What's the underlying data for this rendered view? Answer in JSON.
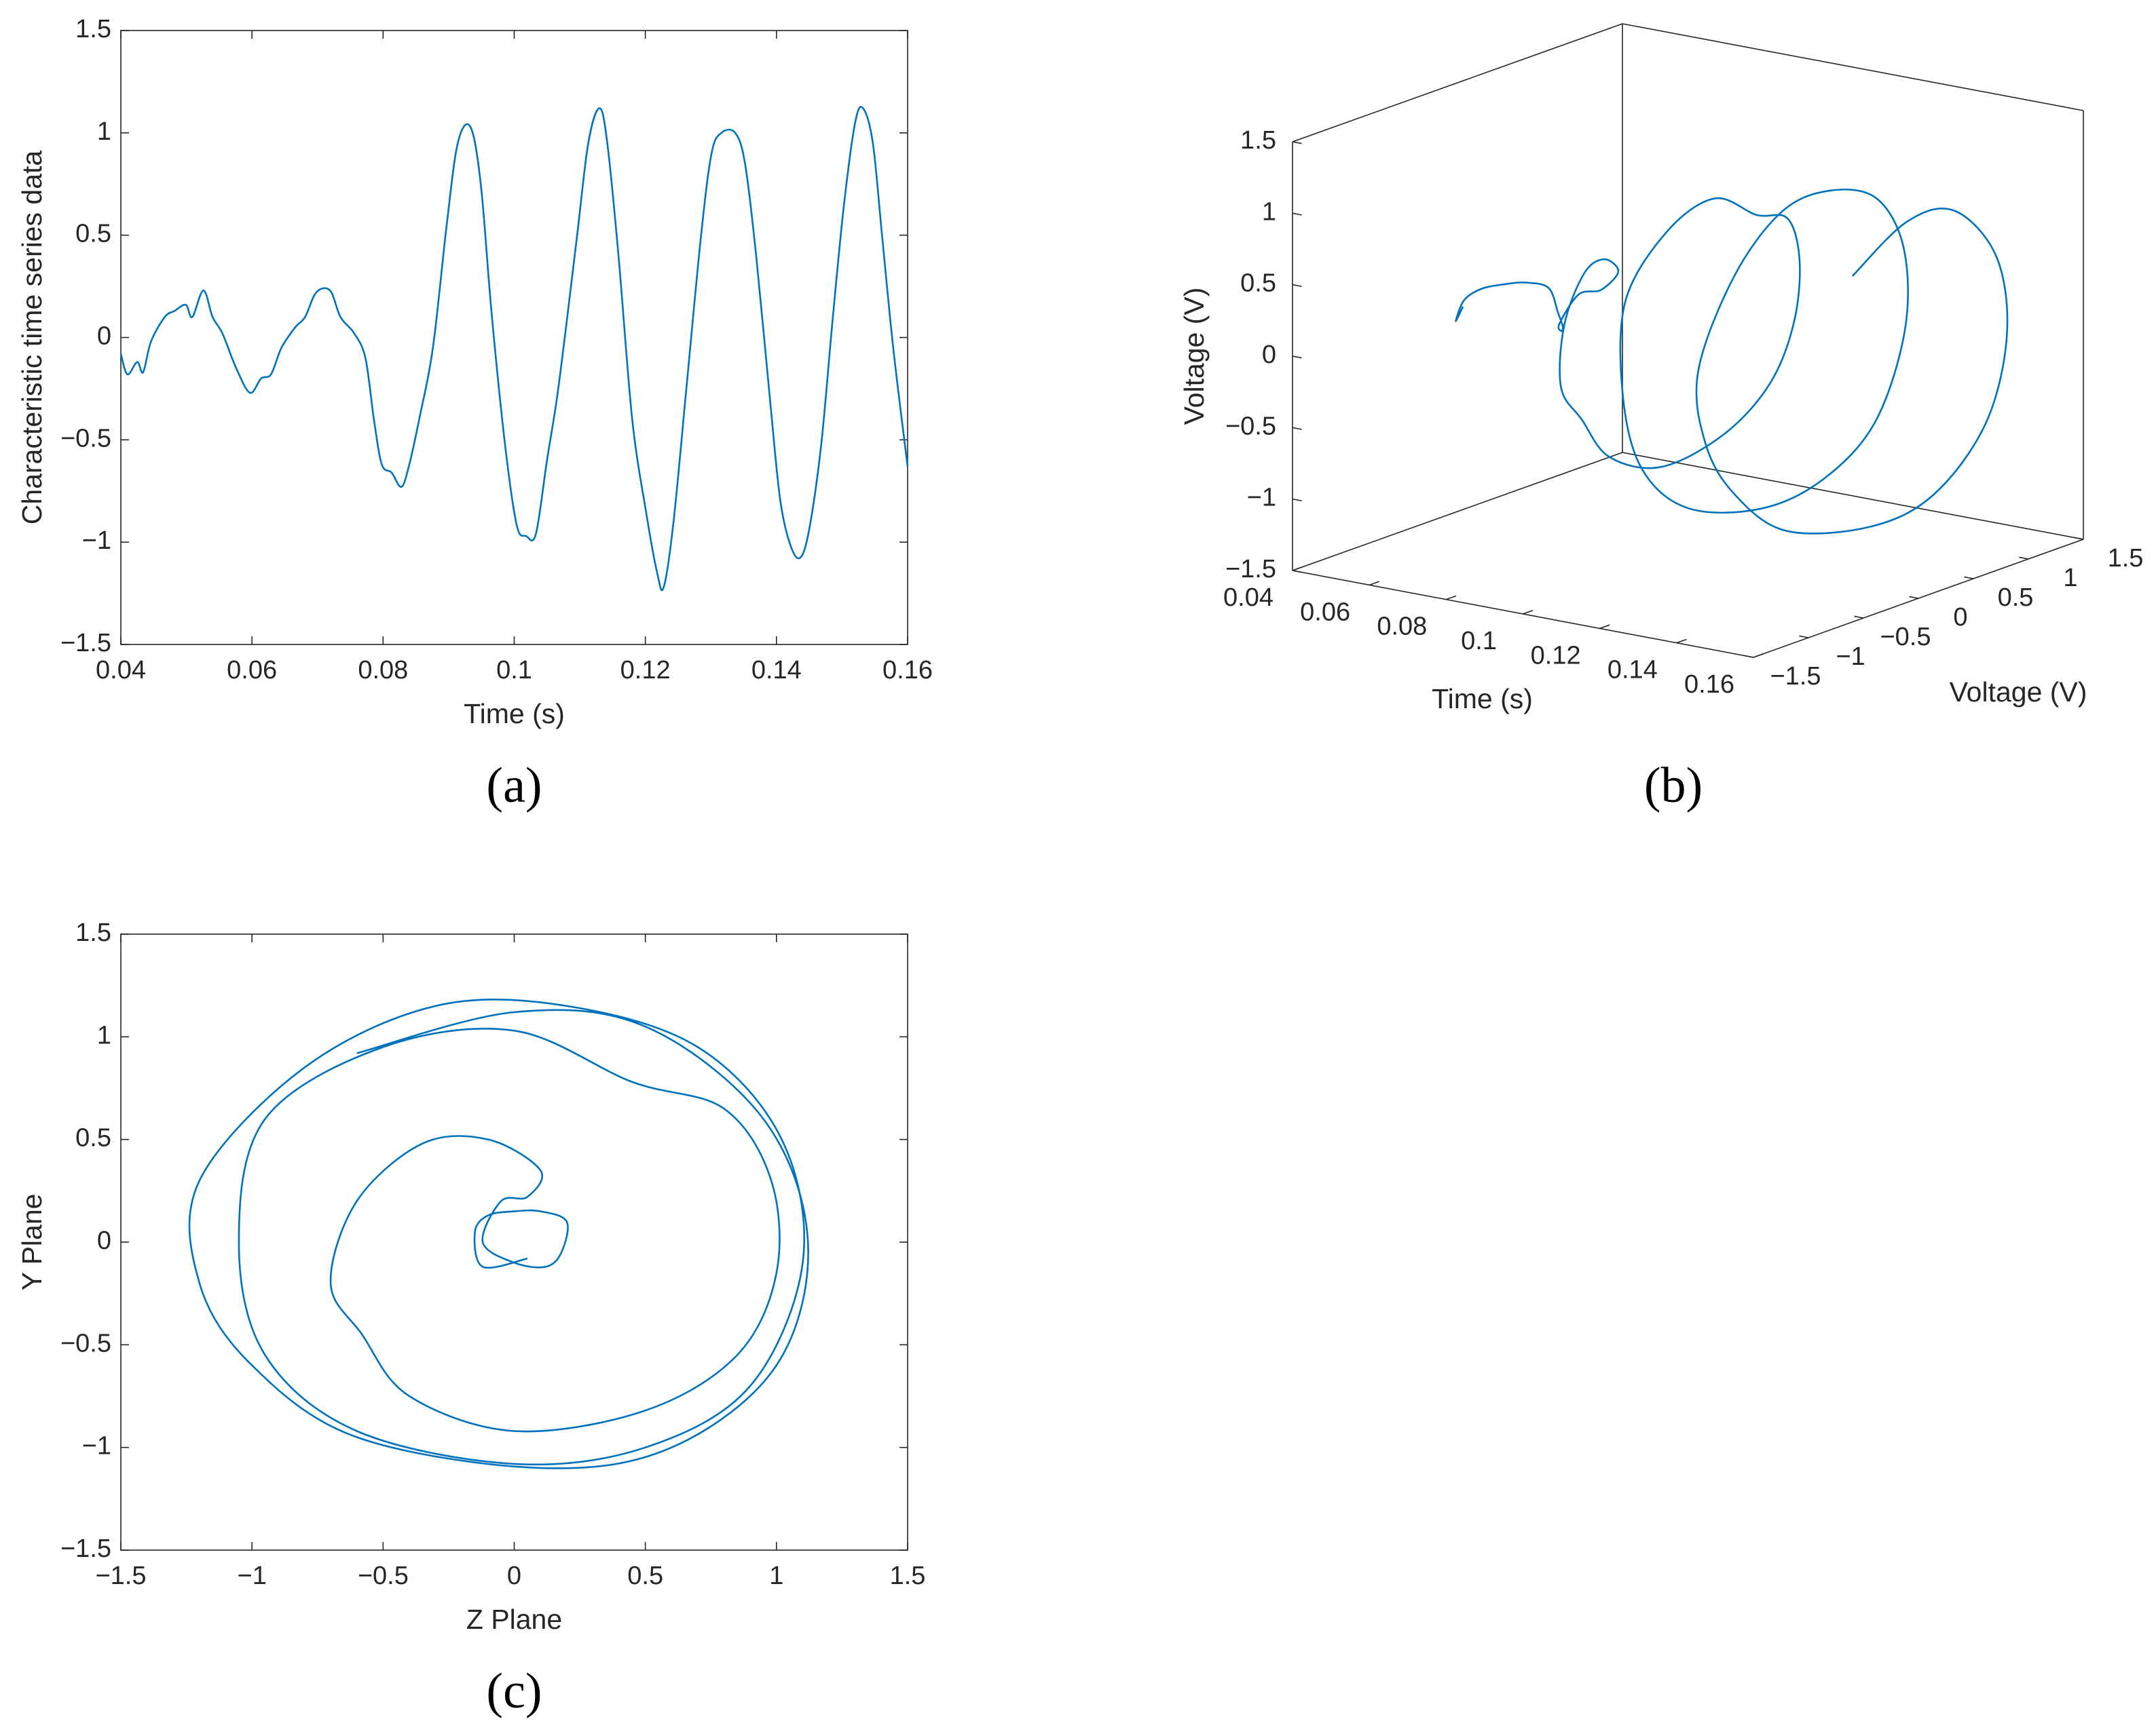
{
  "chart_data": [
    {
      "type": "line",
      "panel_label": "(a)",
      "xlabel": "Time (s)",
      "ylabel": "Characteristic time series data",
      "xlim": [
        0.04,
        0.16
      ],
      "xticks": [
        0.04,
        0.06,
        0.08,
        0.1,
        0.12,
        0.14,
        0.16
      ],
      "ylim": [
        -1.5,
        1.5
      ],
      "yticks": [
        {
          "value": -1.5,
          "label": "−1.5"
        },
        {
          "value": -1,
          "label": "−1"
        },
        {
          "value": -0.5,
          "label": "−0.5"
        },
        0,
        0.5,
        1,
        1.5
      ],
      "x": [
        0.04,
        0.041,
        0.0425,
        0.0434,
        0.0446,
        0.0467,
        0.0482,
        0.0499,
        0.0509,
        0.0526,
        0.054,
        0.0555,
        0.0576,
        0.0597,
        0.0614,
        0.0629,
        0.0645,
        0.0666,
        0.0681,
        0.0698,
        0.0719,
        0.0735,
        0.0756,
        0.0773,
        0.0786,
        0.0798,
        0.0813,
        0.0828,
        0.084,
        0.0855,
        0.0876,
        0.0897,
        0.0914,
        0.0933,
        0.0949,
        0.0966,
        0.0987,
        0.1004,
        0.1018,
        0.1033,
        0.105,
        0.1065,
        0.1079,
        0.1096,
        0.1113,
        0.113,
        0.1142,
        0.1159,
        0.118,
        0.1201,
        0.1218,
        0.1228,
        0.1243,
        0.1264,
        0.1285,
        0.1301,
        0.1316,
        0.1337,
        0.1352,
        0.1369,
        0.139,
        0.1406,
        0.1423,
        0.1438,
        0.1452,
        0.1469,
        0.1486,
        0.1503,
        0.152,
        0.1532,
        0.1547,
        0.1561,
        0.1578,
        0.16
      ],
      "series": [
        {
          "color": "#0072bd",
          "values": [
            -0.08,
            -0.18,
            -0.12,
            -0.17,
            -0.02,
            0.1,
            0.13,
            0.16,
            0.1,
            0.23,
            0.1,
            0.02,
            -0.15,
            -0.27,
            -0.2,
            -0.18,
            -0.05,
            0.05,
            0.1,
            0.22,
            0.23,
            0.1,
            0.02,
            -0.1,
            -0.4,
            -0.62,
            -0.66,
            -0.73,
            -0.62,
            -0.4,
            -0.05,
            0.55,
            0.95,
            1.03,
            0.75,
            0.1,
            -0.55,
            -0.92,
            -0.97,
            -0.96,
            -0.6,
            -0.3,
            0.05,
            0.5,
            0.95,
            1.12,
            0.95,
            0.4,
            -0.4,
            -0.85,
            -1.15,
            -1.22,
            -0.9,
            -0.2,
            0.5,
            0.9,
            1,
            1,
            0.85,
            0.4,
            -0.3,
            -0.8,
            -1.03,
            -1.07,
            -0.9,
            -0.5,
            0.1,
            0.65,
            1.05,
            1.12,
            0.95,
            0.5,
            -0.05,
            -0.63
          ]
        }
      ]
    },
    {
      "type": "line3d",
      "panel_label": "(b)",
      "xlabel": "Time (s)",
      "ylabel": "Voltage (V)",
      "zlabel": "Voltage (V)",
      "xlim": [
        0.04,
        0.16
      ],
      "xticks": [
        0.04,
        0.06,
        0.08,
        0.1,
        0.12,
        0.14,
        0.16
      ],
      "ylim": [
        -1.5,
        1.5
      ],
      "yticks": [
        {
          "value": -1.5,
          "label": "−1.5"
        },
        {
          "value": -1,
          "label": "−1"
        },
        {
          "value": -0.5,
          "label": "−0.5"
        },
        0,
        0.5,
        1,
        1.5
      ],
      "zlim": [
        -1.5,
        1.5
      ],
      "zticks": [
        {
          "value": -1.5,
          "label": "−1.5"
        },
        {
          "value": -1,
          "label": "−1"
        },
        {
          "value": -0.5,
          "label": "−0.5"
        },
        0,
        0.5,
        1,
        1.5
      ],
      "series": [
        {
          "color": "#0072bd",
          "x": [
            0.04,
            0.043,
            0.046,
            0.049,
            0.052,
            0.055,
            0.058,
            0.061,
            0.064,
            0.067,
            0.07,
            0.073,
            0.076,
            0.079,
            0.081,
            0.083,
            0.085,
            0.087,
            0.089,
            0.091,
            0.093,
            0.095,
            0.097,
            0.099,
            0.101,
            0.103,
            0.105,
            0.107,
            0.109,
            0.111,
            0.113,
            0.115,
            0.117,
            0.119,
            0.121,
            0.123,
            0.125,
            0.127,
            0.129,
            0.131,
            0.133,
            0.135,
            0.137,
            0.139,
            0.141,
            0.143,
            0.145,
            0.147,
            0.149,
            0.151,
            0.153,
            0.155,
            0.157,
            0.16
          ],
          "y": [
            0.05,
            -0.12,
            -0.15,
            -0.1,
            0,
            0.1,
            0.2,
            0.18,
            0.12,
            0,
            -0.12,
            -0.05,
            0.05,
            0.1,
            -0.1,
            -0.35,
            -0.6,
            -0.7,
            -0.58,
            -0.4,
            0,
            0.5,
            0.85,
            1,
            0.98,
            0.8,
            0.45,
            0,
            -0.5,
            -0.95,
            -1.05,
            -0.95,
            -0.6,
            0,
            0.5,
            0.9,
            1.1,
            1.02,
            0.7,
            0.2,
            -0.3,
            -0.8,
            -1.2,
            -1.2,
            -1,
            -0.6,
            0.1,
            0.6,
            1,
            1.12,
            0.95,
            0.5,
            0,
            -0.6
          ],
          "z": [
            -0.08,
            -0.12,
            0.05,
            0.13,
            0.15,
            0.15,
            0.1,
            -0.05,
            -0.12,
            -0.1,
            0,
            0.2,
            0.22,
            0.35,
            0.5,
            0.48,
            0.2,
            -0.2,
            -0.45,
            -0.75,
            -0.92,
            -0.82,
            -0.55,
            -0.15,
            0.3,
            0.65,
            0.78,
            1.03,
            0.95,
            0.6,
            0,
            -0.55,
            -0.92,
            -1.08,
            -1,
            -0.7,
            -0.1,
            0.5,
            0.95,
            1.15,
            1.15,
            0.85,
            0.3,
            -0.2,
            -0.6,
            -0.95,
            -1.1,
            -1,
            -0.6,
            0,
            0.6,
            1.05,
            1.12,
            0.92
          ]
        }
      ]
    },
    {
      "type": "line",
      "panel_label": "(c)",
      "xlabel": "Z Plane",
      "ylabel": "Y Plane",
      "xlim": [
        -1.5,
        1.5
      ],
      "xticks": [
        {
          "value": -1.5,
          "label": "−1.5"
        },
        {
          "value": -1,
          "label": "−1"
        },
        {
          "value": -0.5,
          "label": "−0.5"
        },
        0,
        0.5,
        1,
        1.5
      ],
      "ylim": [
        -1.5,
        1.5
      ],
      "yticks": [
        {
          "value": -1.5,
          "label": "−1.5"
        },
        {
          "value": -1,
          "label": "−1"
        },
        {
          "value": -0.5,
          "label": "−0.5"
        },
        0,
        0.5,
        1,
        1.5
      ],
      "series": [
        {
          "color": "#0072bd",
          "x": [
            0.05,
            -0.12,
            -0.15,
            -0.1,
            0,
            0.1,
            0.2,
            0.18,
            0.12,
            0,
            -0.12,
            -0.05,
            0.05,
            0.1,
            -0.1,
            -0.35,
            -0.6,
            -0.7,
            -0.58,
            -0.4,
            0,
            0.5,
            0.85,
            1,
            0.98,
            0.8,
            0.45,
            0,
            -0.5,
            -0.95,
            -1.05,
            -0.95,
            -0.6,
            0,
            0.5,
            0.9,
            1.1,
            1.02,
            0.7,
            0.2,
            -0.3,
            -0.8,
            -1.2,
            -1.2,
            -1,
            -0.6,
            0.1,
            0.6,
            1,
            1.12,
            0.95,
            0.5,
            0,
            -0.6
          ],
          "y": [
            -0.08,
            -0.12,
            0.05,
            0.13,
            0.15,
            0.15,
            0.1,
            -0.05,
            -0.12,
            -0.1,
            0,
            0.2,
            0.22,
            0.35,
            0.5,
            0.48,
            0.2,
            -0.2,
            -0.45,
            -0.75,
            -0.92,
            -0.82,
            -0.55,
            -0.15,
            0.3,
            0.65,
            0.78,
            1.03,
            0.95,
            0.6,
            0,
            -0.55,
            -0.92,
            -1.08,
            -1,
            -0.7,
            -0.1,
            0.5,
            0.95,
            1.15,
            1.15,
            0.85,
            0.3,
            -0.2,
            -0.6,
            -0.95,
            -1.1,
            -1,
            -0.6,
            0,
            0.6,
            1.05,
            1.12,
            0.92
          ]
        }
      ]
    }
  ]
}
